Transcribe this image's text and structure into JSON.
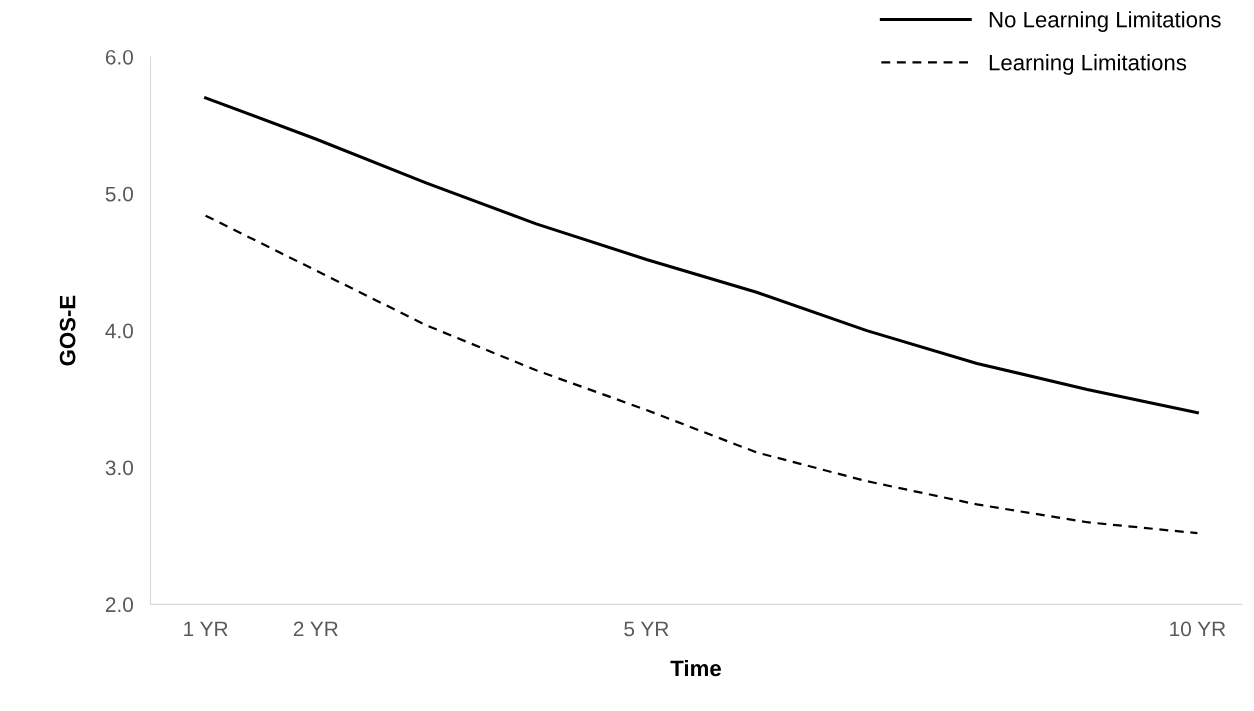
{
  "chart_data": {
    "type": "line",
    "xlabel": "Time",
    "ylabel": "GOS-E",
    "x": [
      1,
      2,
      3,
      4,
      5,
      6,
      7,
      8,
      9,
      10
    ],
    "series": [
      {
        "name": "No Learning Limitations",
        "color": "#000000",
        "line_style": "solid",
        "values": [
          5.7,
          5.4,
          5.08,
          4.78,
          4.52,
          4.28,
          4.0,
          3.76,
          3.57,
          3.4
        ]
      },
      {
        "name": "Learning Limitations",
        "color": "#000000",
        "line_style": "dashed",
        "values": [
          4.84,
          4.44,
          4.04,
          3.71,
          3.42,
          3.11,
          2.9,
          2.73,
          2.6,
          2.52
        ]
      }
    ],
    "xlim": [
      0.5,
      10.4
    ],
    "xticks": [
      {
        "value": 1,
        "label": "1 YR"
      },
      {
        "value": 2,
        "label": "2 YR"
      },
      {
        "value": 5,
        "label": "5 YR"
      },
      {
        "value": 10,
        "label": "10 YR"
      }
    ],
    "ylim": [
      2.0,
      6.0
    ],
    "yticks": [
      {
        "value": 2,
        "label": "2.0"
      },
      {
        "value": 3,
        "label": "3.0"
      },
      {
        "value": 4,
        "label": "4.0"
      },
      {
        "value": 5,
        "label": "5.0"
      },
      {
        "value": 6,
        "label": "6.0"
      }
    ],
    "grid": false,
    "legend": "top right",
    "marker": "none"
  }
}
